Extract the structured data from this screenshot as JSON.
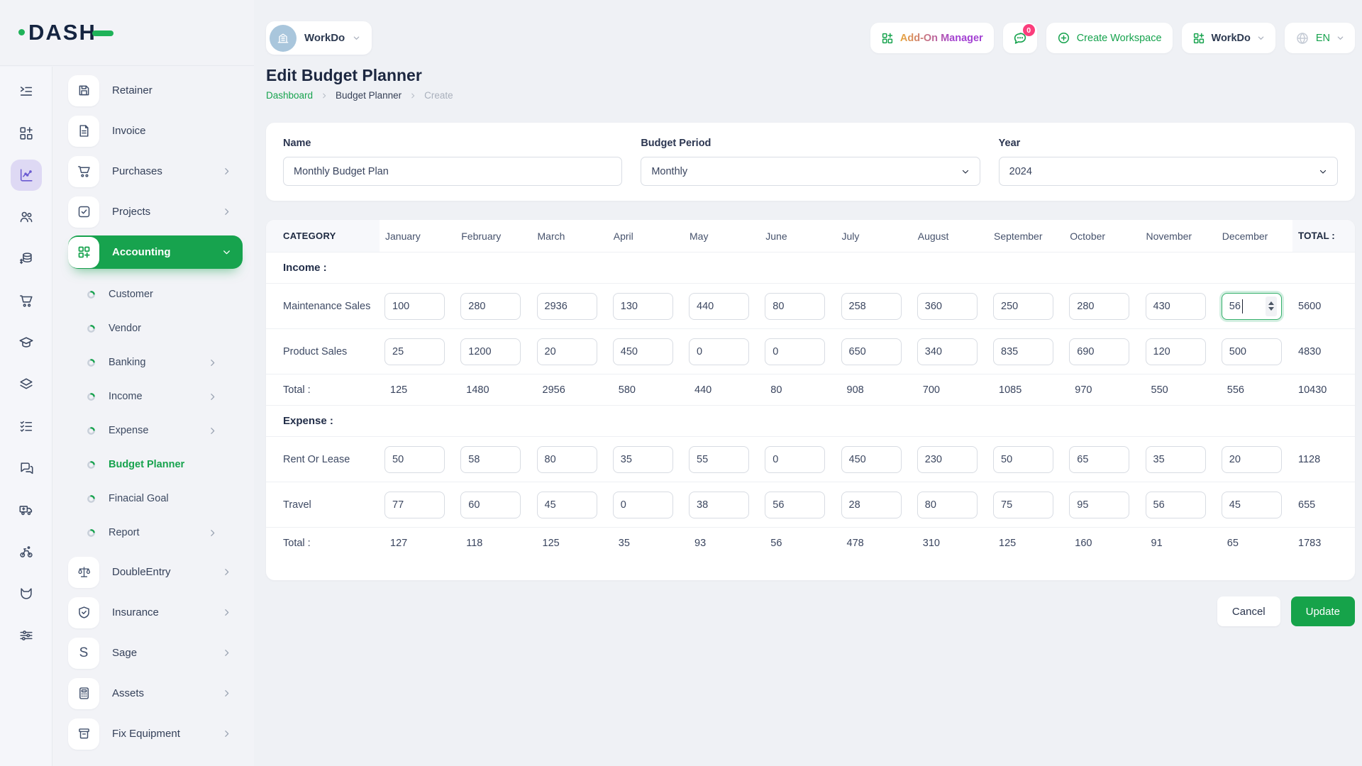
{
  "brand": {
    "name": "DASH"
  },
  "topbar": {
    "workspace_pill": {
      "label": "WorkDo"
    },
    "addon_manager_label": "Add-On Manager",
    "messages_badge": "0",
    "create_workspace_label": "Create Workspace",
    "workspace_switcher_label": "WorkDo",
    "language_label": "EN"
  },
  "page": {
    "title": "Edit Budget Planner",
    "breadcrumb": [
      {
        "label": "Dashboard"
      },
      {
        "label": "Budget Planner"
      },
      {
        "label": "Create"
      }
    ]
  },
  "sidebar": {
    "rail": [
      {
        "name": "playlist-menu"
      },
      {
        "name": "apps-grid"
      },
      {
        "name": "analytics-chart",
        "active": true
      },
      {
        "name": "users"
      },
      {
        "name": "money-coins"
      },
      {
        "name": "shopping-cart"
      },
      {
        "name": "graduation-cap"
      },
      {
        "name": "layers"
      },
      {
        "name": "task-checklist"
      },
      {
        "name": "chat-messages"
      },
      {
        "name": "delivery-truck"
      },
      {
        "name": "bike-rider"
      },
      {
        "name": "fox-head"
      },
      {
        "name": "settings-sliders"
      }
    ],
    "items": [
      {
        "label": "Retainer",
        "icon": "retainer"
      },
      {
        "label": "Invoice",
        "icon": "invoice"
      },
      {
        "label": "Purchases",
        "icon": "purchases",
        "chevron": true
      },
      {
        "label": "Projects",
        "icon": "projects",
        "chevron": true
      },
      {
        "label": "Accounting",
        "icon": "accounting",
        "chevron": true,
        "active": true,
        "children": [
          {
            "label": "Customer"
          },
          {
            "label": "Vendor"
          },
          {
            "label": "Banking",
            "chevron": true
          },
          {
            "label": "Income",
            "chevron": true
          },
          {
            "label": "Expense",
            "chevron": true
          },
          {
            "label": "Budget Planner",
            "active": true
          },
          {
            "label": "Finacial Goal"
          },
          {
            "label": "Report",
            "chevron": true
          }
        ]
      },
      {
        "label": "DoubleEntry",
        "icon": "double-entry",
        "chevron": true
      },
      {
        "label": "Insurance",
        "icon": "insurance",
        "chevron": true
      },
      {
        "label": "Sage",
        "icon": "sage",
        "chevron": true
      },
      {
        "label": "Assets",
        "icon": "assets",
        "chevron": true
      },
      {
        "label": "Fix Equipment",
        "icon": "fix-equipment",
        "chevron": true
      }
    ]
  },
  "form": {
    "name": {
      "label": "Name",
      "value": "Monthly Budget Plan"
    },
    "budget_period": {
      "label": "Budget Period",
      "value": "Monthly"
    },
    "year": {
      "label": "Year",
      "value": "2024"
    }
  },
  "budget_table": {
    "category_header": "CATEGORY",
    "total_header": "TOTAL :",
    "total_row_label": "Total :",
    "months": [
      "January",
      "February",
      "March",
      "April",
      "May",
      "June",
      "July",
      "August",
      "September",
      "October",
      "November",
      "December"
    ],
    "sections": [
      {
        "title": "Income :",
        "rows": [
          {
            "category": "Maintenance Sales",
            "values": [
              "100",
              "280",
              "2936",
              "130",
              "440",
              "80",
              "258",
              "360",
              "250",
              "280",
              "430",
              "56"
            ],
            "total": "5600",
            "focused_month_index": 11
          },
          {
            "category": "Product Sales",
            "values": [
              "25",
              "1200",
              "20",
              "450",
              "0",
              "0",
              "650",
              "340",
              "835",
              "690",
              "120",
              "500"
            ],
            "total": "4830"
          }
        ],
        "monthly_totals": [
          "125",
          "1480",
          "2956",
          "580",
          "440",
          "80",
          "908",
          "700",
          "1085",
          "970",
          "550",
          "556"
        ],
        "grand_total": "10430"
      },
      {
        "title": "Expense :",
        "rows": [
          {
            "category": "Rent Or Lease",
            "values": [
              "50",
              "58",
              "80",
              "35",
              "55",
              "0",
              "450",
              "230",
              "50",
              "65",
              "35",
              "20"
            ],
            "total": "1128"
          },
          {
            "category": "Travel",
            "values": [
              "77",
              "60",
              "45",
              "0",
              "38",
              "56",
              "28",
              "80",
              "75",
              "95",
              "56",
              "45"
            ],
            "total": "655"
          }
        ],
        "monthly_totals": [
          "127",
          "118",
          "125",
          "35",
          "93",
          "56",
          "478",
          "310",
          "125",
          "160",
          "91",
          "65"
        ],
        "grand_total": "1783"
      }
    ]
  },
  "actions": {
    "cancel": "Cancel",
    "update": "Update"
  },
  "colors": {
    "accent_green": "#17a34e",
    "active_purple": "#6a5ad1",
    "badge_pink": "#fb3e7c",
    "brand_navy": "#152440",
    "focus_border": "#35b06b"
  }
}
